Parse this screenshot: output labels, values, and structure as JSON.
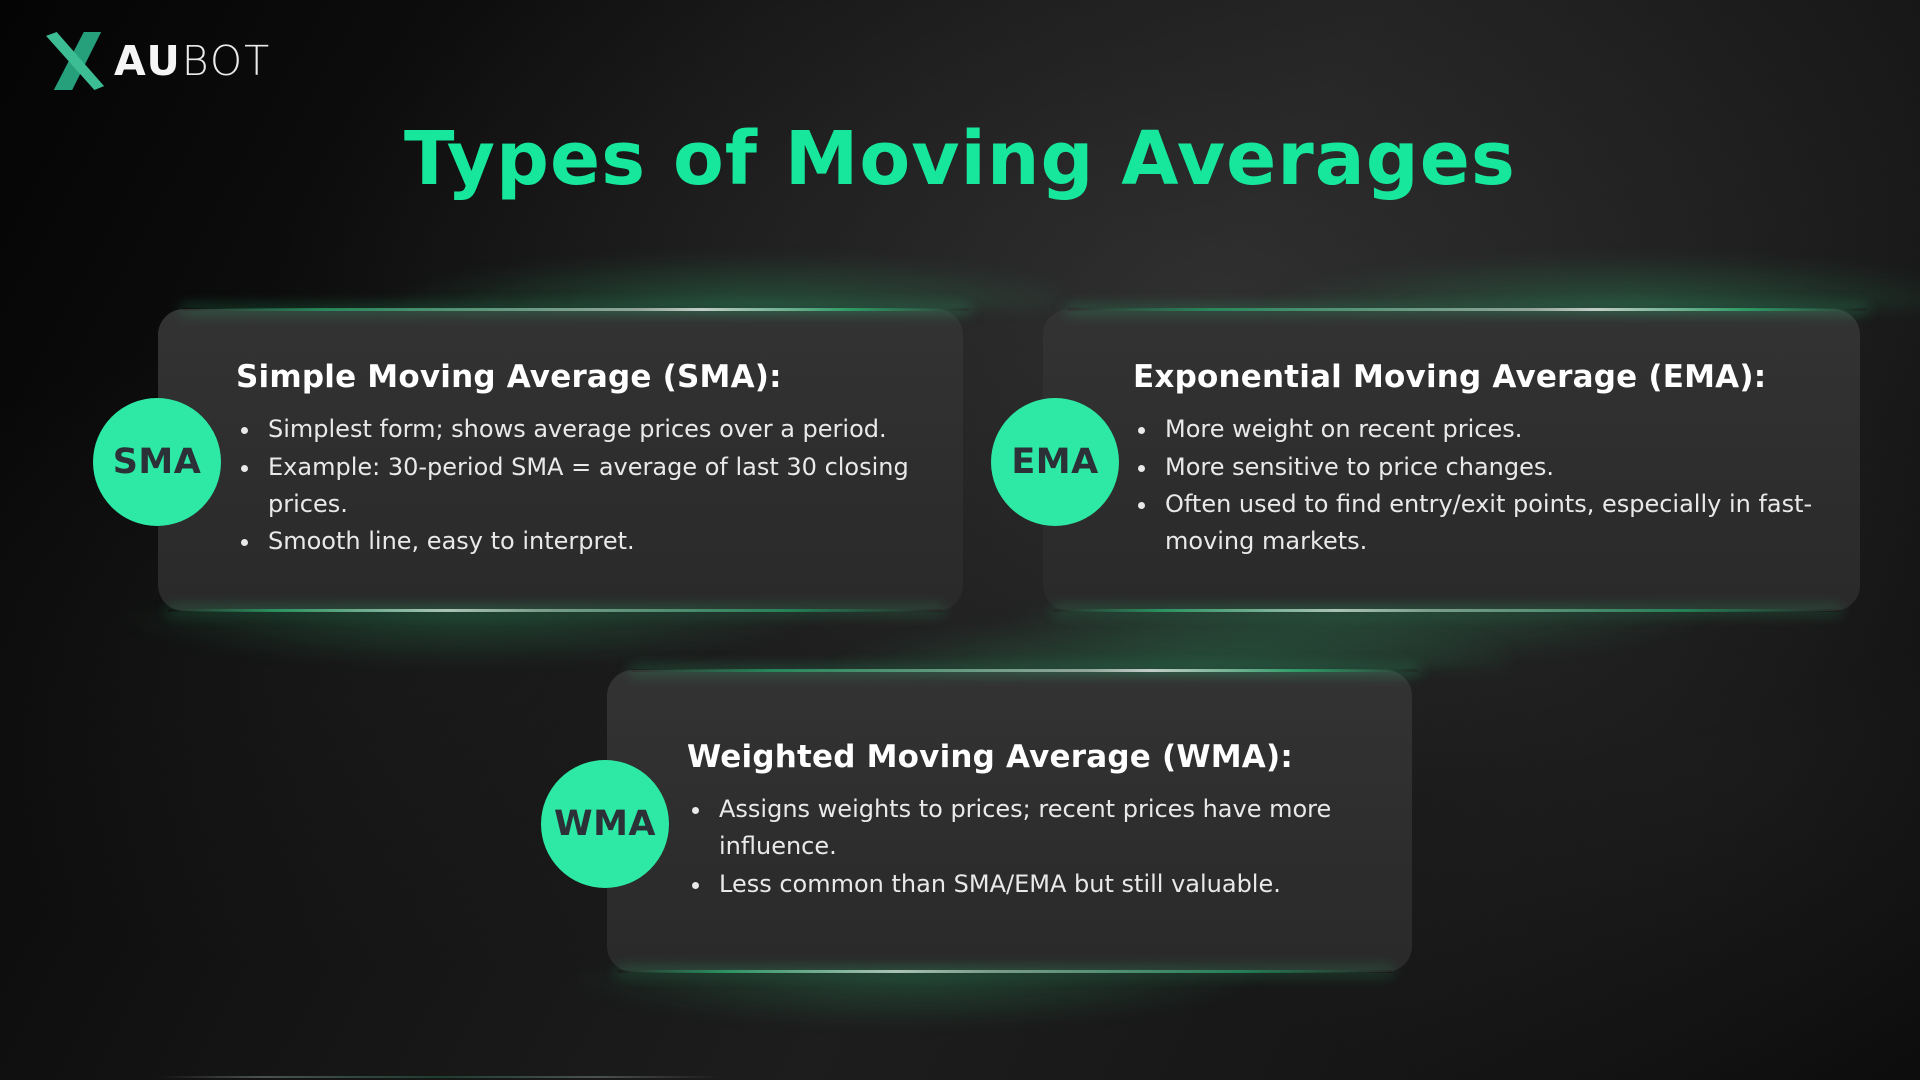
{
  "logo": {
    "x_mark": "x-swoosh",
    "text_bold": "AU",
    "text_light": "BOT"
  },
  "title": "Types of Moving Averages",
  "colors": {
    "accent_green": "#17e79c",
    "badge_green": "#2de9a5",
    "card_bg": "#2e2e2e",
    "bullet_text": "#e9e9e9",
    "logo_green_light": "#3dbd93",
    "logo_green_dark": "#26a07a"
  },
  "cards": [
    {
      "badge": "SMA",
      "title": "Simple Moving Average (SMA):",
      "bullets": [
        "Simplest form; shows average prices over a period.",
        "Example: 30-period SMA = average of last 30 closing prices.",
        "Smooth line, easy to interpret."
      ]
    },
    {
      "badge": "EMA",
      "title": "Exponential Moving Average (EMA):",
      "bullets": [
        "More weight on recent prices.",
        "More sensitive to price changes.",
        "Often used to find entry/exit points, especially in fast-moving markets."
      ]
    },
    {
      "badge": "WMA",
      "title": "Weighted Moving Average (WMA):",
      "bullets": [
        "Assigns weights to prices; recent prices have more influence.",
        "Less common than SMA/EMA but still valuable."
      ]
    }
  ]
}
